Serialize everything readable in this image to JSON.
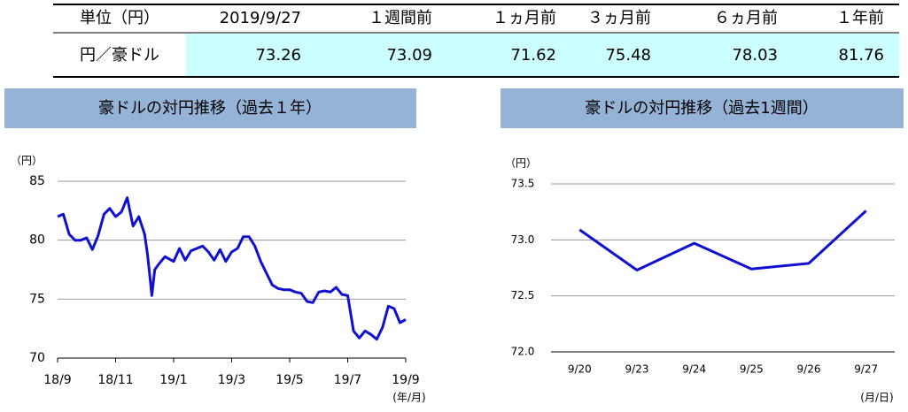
{
  "table": {
    "header": [
      "単位（円）",
      "2019/9/27",
      "１週間前",
      "１ヵ月前",
      "３ヵ月前",
      "６ヵ月前",
      "１年前"
    ],
    "rows": [
      [
        "円／豪ドル",
        "73.26",
        "73.09",
        "71.62",
        "75.48",
        "78.03",
        "81.76"
      ]
    ]
  },
  "chart_data": [
    {
      "type": "line",
      "title": "豪ドルの対円推移（過去１年）",
      "y_unit": "（円）",
      "x_unit": "(年/月)",
      "color": "#1010d0",
      "x": [
        0,
        0.2,
        0.4,
        0.6,
        0.8,
        1.0,
        1.2,
        1.4,
        1.6,
        1.8,
        2.0,
        2.2,
        2.4,
        2.6,
        2.8,
        3.0,
        3.1,
        3.2,
        3.25,
        3.35,
        3.5,
        3.7,
        4.0,
        4.2,
        4.4,
        4.6,
        4.8,
        5.0,
        5.2,
        5.4,
        5.6,
        5.8,
        6.0,
        6.2,
        6.4,
        6.6,
        6.8,
        7.0,
        7.2,
        7.4,
        7.6,
        7.8,
        8.0,
        8.2,
        8.4,
        8.6,
        8.8,
        9.0,
        9.2,
        9.4,
        9.6,
        9.8,
        10.0,
        10.1,
        10.2,
        10.4,
        10.6,
        10.8,
        11.0,
        11.2,
        11.4,
        11.6,
        11.8,
        12.0
      ],
      "values": [
        82.0,
        82.2,
        80.5,
        80.0,
        80.0,
        80.2,
        79.2,
        80.4,
        82.2,
        82.7,
        82.0,
        82.4,
        83.6,
        81.2,
        82.0,
        80.5,
        78.8,
        76.5,
        75.3,
        77.5,
        78.0,
        78.6,
        78.2,
        79.3,
        78.3,
        79.1,
        79.3,
        79.5,
        79.0,
        78.3,
        79.2,
        78.2,
        79.0,
        79.3,
        80.3,
        80.3,
        79.5,
        78.2,
        77.2,
        76.2,
        75.9,
        75.8,
        75.8,
        75.6,
        75.5,
        74.8,
        74.7,
        75.6,
        75.7,
        75.6,
        76.0,
        75.4,
        75.3,
        73.8,
        72.3,
        71.7,
        72.3,
        72.0,
        71.6,
        72.6,
        74.4,
        74.2,
        73.0,
        73.26
      ],
      "xlim": [
        0,
        12
      ],
      "xticks": [
        {
          "value": 0,
          "label": "18/9"
        },
        {
          "value": 2,
          "label": "18/11"
        },
        {
          "value": 4,
          "label": "19/1"
        },
        {
          "value": 6,
          "label": "19/3"
        },
        {
          "value": 8,
          "label": "19/5"
        },
        {
          "value": 10,
          "label": "19/7"
        },
        {
          "value": 12,
          "label": "19/9"
        }
      ],
      "ylim": [
        70,
        85
      ],
      "yticks": [
        70,
        75,
        80,
        85
      ],
      "grid": true
    },
    {
      "type": "line",
      "title": "豪ドルの対円推移（過去1週間）",
      "y_unit": "（円）",
      "x_unit": "(月/日)",
      "color": "#1010d0",
      "categories": [
        "9/20",
        "9/23",
        "9/24",
        "9/25",
        "9/26",
        "9/27"
      ],
      "values": [
        73.09,
        72.73,
        72.97,
        72.74,
        72.79,
        73.26
      ],
      "ylim": [
        72,
        73.5
      ],
      "yticks": [
        {
          "value": 72,
          "label": "72.0"
        },
        {
          "value": 72.5,
          "label": "72.5"
        },
        {
          "value": 73,
          "label": "73.0"
        },
        {
          "value": 73.5,
          "label": "73.5"
        }
      ],
      "grid": true
    }
  ]
}
